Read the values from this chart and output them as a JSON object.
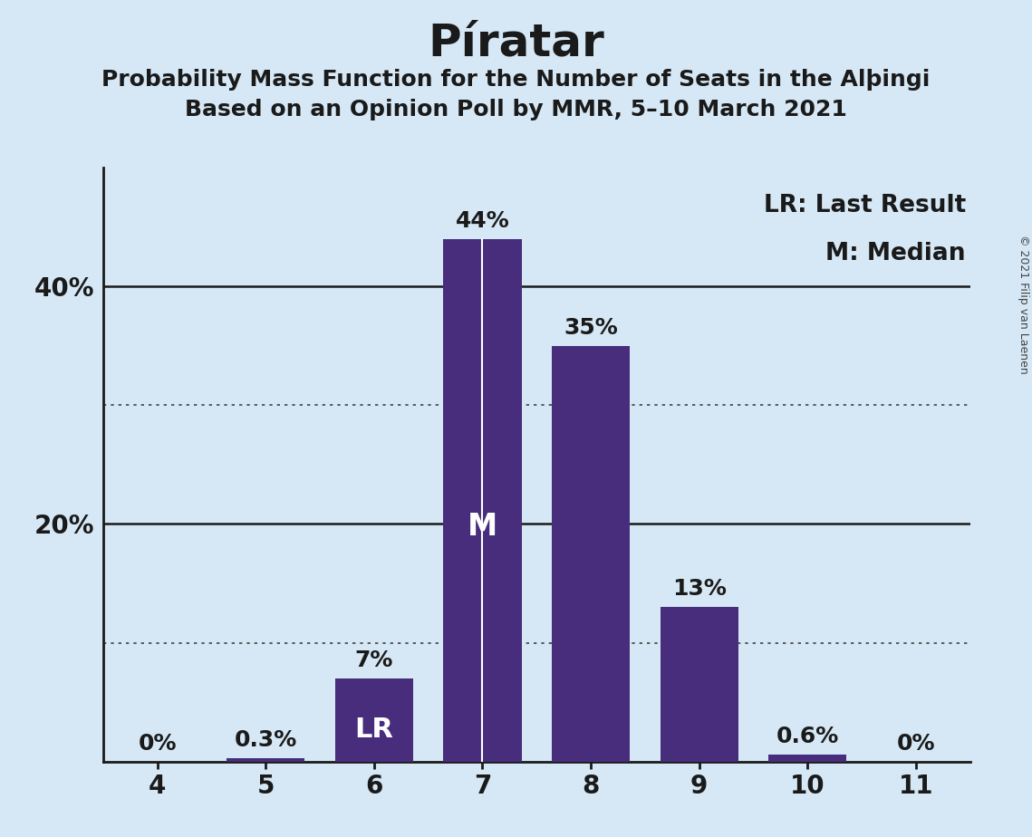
{
  "title": "Píratar",
  "subtitle1": "Probability Mass Function for the Number of Seats in the Alþingi",
  "subtitle2": "Based on an Opinion Poll by MMR, 5–10 March 2021",
  "copyright": "© 2021 Filip van Laenen",
  "categories": [
    4,
    5,
    6,
    7,
    8,
    9,
    10,
    11
  ],
  "values": [
    0.0,
    0.3,
    7.0,
    44.0,
    35.0,
    13.0,
    0.6,
    0.0
  ],
  "bar_color": "#472d7b",
  "background_color": "#d6e8f5",
  "label_color_outside": "#1a1a1a",
  "label_color_inside": "#ffffff",
  "median_seat": 7,
  "last_result_seat": 6,
  "legend_lr": "LR: Last Result",
  "legend_m": "M: Median",
  "xlim": [
    3.5,
    11.5
  ],
  "ylim": [
    0,
    50
  ],
  "solid_yticks": [
    20,
    40
  ],
  "dotted_yticks": [
    10,
    30
  ],
  "bar_width": 0.72,
  "label_fontsize": 18,
  "tick_fontsize": 20,
  "title_fontsize": 36,
  "subtitle_fontsize": 18,
  "legend_fontsize": 19
}
